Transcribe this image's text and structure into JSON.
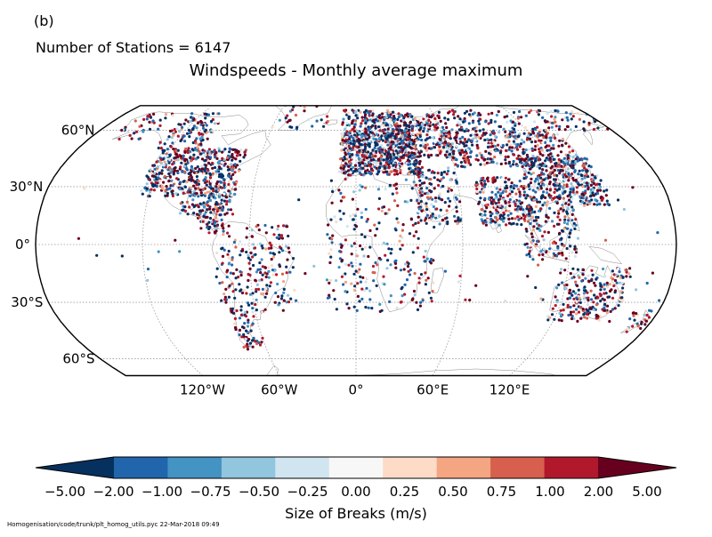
{
  "panel_label": "(b)",
  "stations_text": "Number of Stations = 6147",
  "title": "Windspeeds - Monthly average maximum",
  "lat_labels": [
    "60°N",
    "30°N",
    "0°",
    "30°S",
    "60°S"
  ],
  "lat_values": [
    60,
    30,
    0,
    -30,
    -60
  ],
  "lon_labels": [
    "120°W",
    "60°W",
    "0°",
    "60°E",
    "120°E"
  ],
  "lon_values": [
    -120,
    -60,
    0,
    60,
    120
  ],
  "colorbar": {
    "label": "Size of Breaks (m/s)",
    "ticks": [
      "−5.00",
      "−2.00",
      "−1.00",
      "−0.75",
      "−0.50",
      "−0.25",
      "0.00",
      "0.25",
      "0.50",
      "0.75",
      "1.00",
      "2.00",
      "5.00"
    ],
    "colors": [
      "#053061",
      "#2166ac",
      "#4393c3",
      "#92c5de",
      "#d1e5f0",
      "#f7f7f7",
      "#fddbc7",
      "#f4a582",
      "#d6604d",
      "#b2182b",
      "#67001f"
    ],
    "extend_min_color": "#06305e",
    "extend_max_color": "#67001f"
  },
  "footer": "Homogenisation/code/trunk/plt_homog_utils.pyc   22-Mar-2018 09:49"
}
